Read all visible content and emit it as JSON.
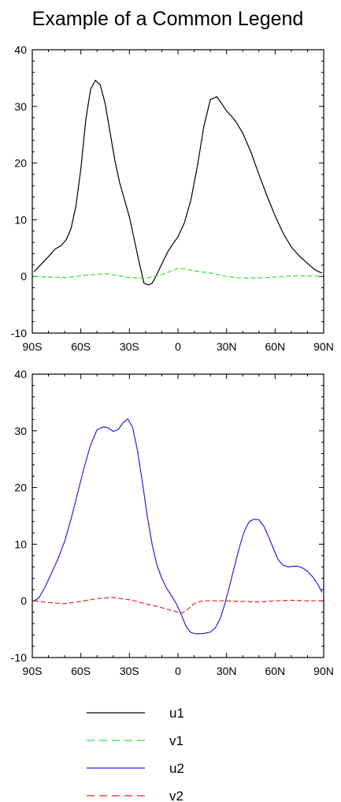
{
  "title": "Example of a Common Legend",
  "chart_data": [
    {
      "type": "line",
      "panel": "top",
      "title": "",
      "xlabel": "",
      "ylabel": "",
      "xlim": [
        -90,
        90
      ],
      "ylim": [
        -10,
        40
      ],
      "xticks": [
        -90,
        -60,
        -30,
        0,
        30,
        60,
        90
      ],
      "xtick_labels": [
        "90S",
        "60S",
        "30S",
        "0",
        "30N",
        "60N",
        "90N"
      ],
      "yticks": [
        -10,
        0,
        10,
        20,
        30,
        40
      ],
      "ytick_labels": [
        "-10",
        "0",
        "10",
        "20",
        "30",
        "40"
      ],
      "grid": false,
      "series": [
        {
          "name": "u1",
          "color": "#000000",
          "dash": "solid",
          "x": [
            -89,
            -85,
            -80,
            -76,
            -72,
            -69,
            -66,
            -63,
            -60,
            -57,
            -54,
            -51,
            -48,
            -45,
            -42,
            -39,
            -36,
            -33,
            -30,
            -27,
            -24,
            -21,
            -18,
            -16,
            -14,
            -12,
            -9,
            -6,
            -3,
            0,
            4,
            8,
            12,
            16,
            20,
            24,
            27,
            30,
            33,
            36,
            40,
            45,
            50,
            55,
            60,
            65,
            70,
            75,
            80,
            85,
            89
          ],
          "y": [
            0.8,
            2.0,
            3.5,
            4.8,
            5.5,
            6.5,
            8.5,
            12.5,
            19,
            27.5,
            33,
            34.6,
            33.8,
            30.5,
            25.5,
            20.5,
            16.5,
            13.5,
            10.5,
            6.5,
            2.5,
            -1.2,
            -1.5,
            -1.2,
            -0.2,
            1.0,
            2.8,
            4.5,
            5.8,
            7.0,
            9.5,
            13.5,
            19.5,
            26.5,
            31.2,
            31.7,
            30.5,
            29.2,
            28.3,
            27.2,
            25.3,
            22.0,
            18.0,
            14.2,
            10.7,
            7.6,
            5.2,
            3.6,
            2.3,
            1.1,
            0.6
          ]
        },
        {
          "name": "v1",
          "color": "#33dd33",
          "dash": "dashed",
          "x": [
            -89,
            -80,
            -70,
            -60,
            -50,
            -45,
            -40,
            -30,
            -20,
            -10,
            0,
            5,
            10,
            20,
            30,
            40,
            50,
            60,
            70,
            80,
            89
          ],
          "y": [
            0,
            -0.1,
            -0.2,
            0.1,
            0.4,
            0.5,
            0.3,
            -0.2,
            -0.3,
            0.3,
            1.4,
            1.3,
            1.0,
            0.6,
            0.0,
            -0.3,
            -0.3,
            -0.1,
            0.1,
            0.1,
            0
          ]
        }
      ]
    },
    {
      "type": "line",
      "panel": "bottom",
      "title": "",
      "xlabel": "",
      "ylabel": "",
      "xlim": [
        -90,
        90
      ],
      "ylim": [
        -10,
        40
      ],
      "xticks": [
        -90,
        -60,
        -30,
        0,
        30,
        60,
        90
      ],
      "xtick_labels": [
        "90S",
        "60S",
        "30S",
        "0",
        "30N",
        "60N",
        "90N"
      ],
      "yticks": [
        -10,
        0,
        10,
        20,
        30,
        40
      ],
      "ytick_labels": [
        "-10",
        "0",
        "10",
        "20",
        "30",
        "40"
      ],
      "grid": false,
      "series": [
        {
          "name": "u2",
          "color": "#2222ee",
          "dash": "solid",
          "x": [
            -89,
            -86,
            -82,
            -78,
            -74,
            -70,
            -66,
            -62,
            -58,
            -54,
            -50,
            -46,
            -43,
            -40,
            -37,
            -34,
            -31,
            -28,
            -25,
            -22,
            -19,
            -16,
            -13,
            -10,
            -7,
            -4,
            -1,
            2,
            5,
            8,
            11,
            14,
            17,
            20,
            23,
            26,
            29,
            32,
            35,
            38,
            41,
            44,
            47,
            50,
            53,
            56,
            59,
            62,
            65,
            68,
            71,
            74,
            77,
            80,
            83,
            86,
            89
          ],
          "y": [
            0.0,
            0.5,
            2.5,
            5.0,
            7.5,
            10.5,
            14.5,
            19.0,
            23.5,
            27.5,
            30.2,
            30.7,
            30.5,
            29.9,
            30.2,
            31.4,
            32.1,
            30.6,
            26.5,
            21.0,
            15.0,
            10.0,
            6.3,
            4.0,
            2.2,
            0.9,
            -0.5,
            -2.4,
            -4.5,
            -5.6,
            -5.8,
            -5.8,
            -5.7,
            -5.5,
            -4.8,
            -3.2,
            -0.5,
            2.8,
            6.2,
            9.5,
            12.3,
            14.0,
            14.4,
            14.3,
            13.2,
            11.3,
            9.2,
            7.2,
            6.3,
            6.0,
            6.1,
            6.1,
            5.8,
            5.2,
            4.3,
            3.1,
            1.5
          ]
        },
        {
          "name": "v2",
          "color": "#ee2222",
          "dash": "dashed",
          "x": [
            -89,
            -80,
            -70,
            -60,
            -50,
            -40,
            -30,
            -20,
            -10,
            0,
            3,
            6,
            10,
            15,
            20,
            30,
            40,
            50,
            60,
            70,
            80,
            89
          ],
          "y": [
            0,
            -0.3,
            -0.5,
            -0.1,
            0.4,
            0.6,
            0.2,
            -0.5,
            -1.2,
            -2.0,
            -2.1,
            -1.5,
            -0.5,
            0.0,
            0.0,
            0.0,
            -0.1,
            -0.2,
            0.0,
            0.1,
            0.0,
            0
          ]
        }
      ]
    }
  ],
  "legend": {
    "placement": "bottom",
    "entries": [
      {
        "label": "u1",
        "color": "#000000",
        "dash": "solid"
      },
      {
        "label": "v1",
        "color": "#33dd33",
        "dash": "dashed"
      },
      {
        "label": "u2",
        "color": "#2222ee",
        "dash": "solid"
      },
      {
        "label": "v2",
        "color": "#ee2222",
        "dash": "dashed"
      }
    ]
  }
}
